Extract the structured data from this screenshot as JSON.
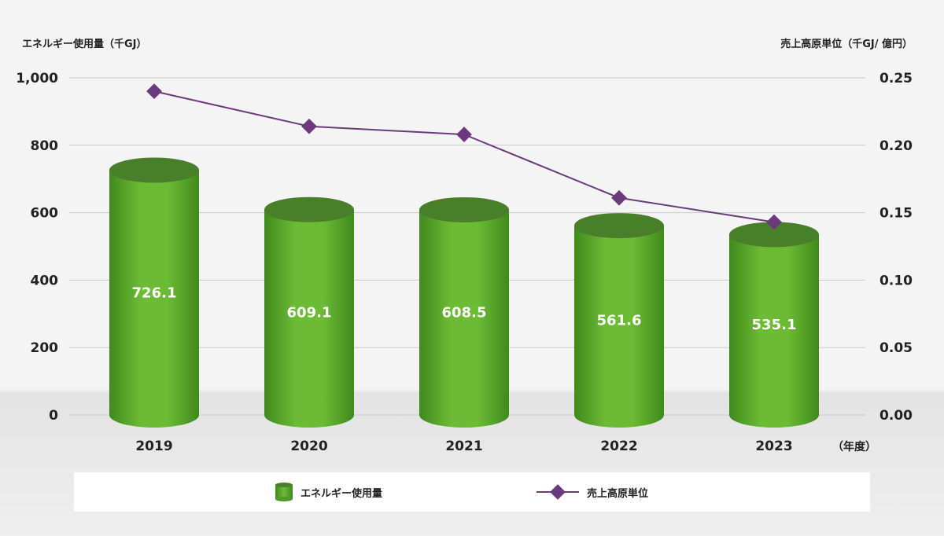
{
  "chart_data": {
    "type": "bar",
    "categories": [
      "2019",
      "2020",
      "2021",
      "2022",
      "2023"
    ],
    "x_unit_label": "（年度）",
    "series": [
      {
        "name": "エネルギー使用量",
        "type": "bar",
        "axis": "left",
        "values": [
          726.1,
          609.1,
          608.5,
          561.6,
          535.1
        ],
        "color": "#5fae2e"
      },
      {
        "name": "売上高原単位",
        "type": "line",
        "axis": "right",
        "values": [
          0.24,
          0.214,
          0.208,
          0.161,
          0.143
        ],
        "color": "#6b3a7d"
      }
    ],
    "left_axis": {
      "label": "エネルギー使用量（千GJ）",
      "ylim": [
        0,
        1000
      ],
      "ticks": [
        "0",
        "200",
        "400",
        "600",
        "800",
        "1,000"
      ]
    },
    "right_axis": {
      "label": "売上高原単位（千GJ/ 億円）",
      "ylim": [
        0,
        0.25
      ],
      "ticks": [
        "0.00",
        "0.05",
        "0.10",
        "0.15",
        "0.20",
        "0.25"
      ]
    },
    "grid": true,
    "legend_position": "bottom"
  }
}
